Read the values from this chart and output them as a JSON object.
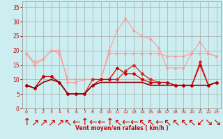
{
  "x": [
    0,
    1,
    2,
    3,
    4,
    5,
    6,
    7,
    8,
    9,
    10,
    11,
    12,
    13,
    14,
    15,
    16,
    17,
    18,
    19,
    20,
    21,
    22,
    23
  ],
  "line_light1": [
    19,
    15,
    17,
    20,
    19,
    10,
    10,
    10,
    10,
    10,
    19,
    19,
    19,
    19,
    19,
    19,
    19,
    18,
    18,
    18,
    19,
    19,
    19,
    18
  ],
  "line_light2": [
    19,
    16,
    17,
    20,
    20,
    9,
    9,
    10,
    10,
    10,
    20,
    27,
    31,
    27,
    25,
    24,
    21,
    14,
    14,
    14,
    19,
    23,
    19,
    18
  ],
  "line_med1": [
    8,
    7,
    11,
    11,
    9,
    5,
    5,
    5,
    10,
    10,
    10,
    10,
    13,
    15,
    12,
    10,
    9,
    9,
    8,
    8,
    8,
    16,
    8,
    9
  ],
  "line_med2": [
    8,
    7,
    11,
    11,
    9,
    5,
    5,
    5,
    8,
    10,
    10,
    14,
    12,
    12,
    10,
    9,
    9,
    9,
    8,
    8,
    8,
    15,
    8,
    9
  ],
  "line_dark": [
    8,
    7,
    9,
    10,
    9,
    5,
    5,
    5,
    8,
    9,
    9,
    9,
    9,
    9,
    9,
    8,
    8,
    8,
    8,
    8,
    8,
    8,
    8,
    9
  ],
  "bg_color": "#cceef0",
  "grid_color": "#aaaaaa",
  "line_light_color": "#ff9999",
  "line_med_color1": "#dd2222",
  "line_med_color2": "#cc0000",
  "line_dark_color": "#880000",
  "tick_color": "#cc0000",
  "label_color": "#cc0000",
  "xlabel": "Vent moyen/en rafales ( km/h )",
  "ylim": [
    0,
    37
  ],
  "yticks": [
    0,
    5,
    10,
    15,
    20,
    25,
    30,
    35
  ],
  "wind_dirs": [
    "↑",
    "↗",
    "↗",
    "↗",
    "↗",
    "↖",
    "←",
    "↑",
    "←",
    "←",
    "↑",
    "↖",
    "←",
    "←",
    "↖",
    "↖",
    "←",
    "↖",
    "↖",
    "↖",
    "↖",
    "↙",
    "↘",
    "↘"
  ]
}
